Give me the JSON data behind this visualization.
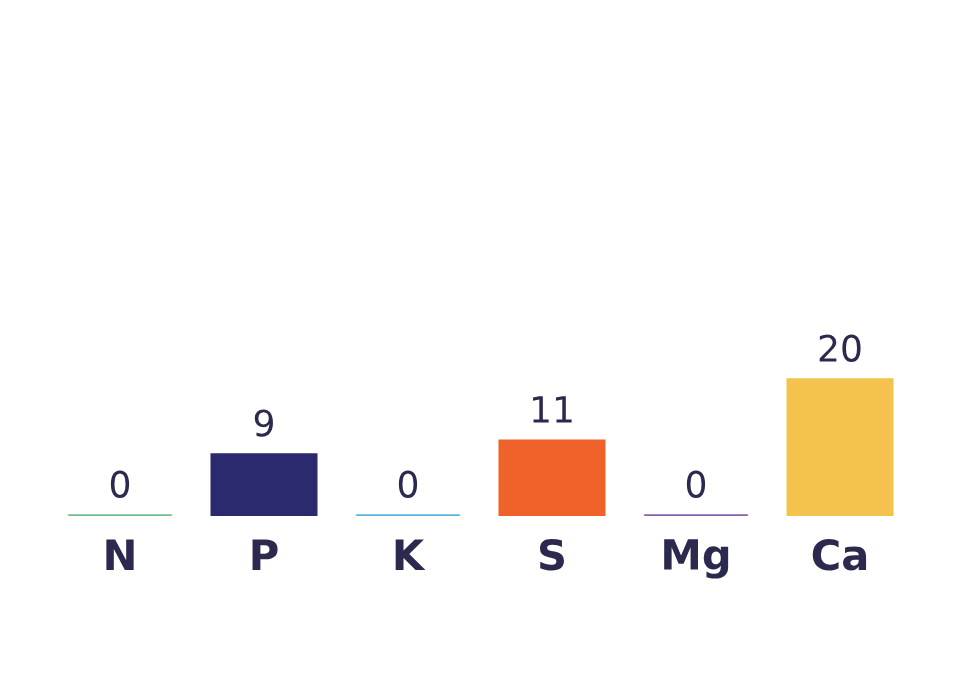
{
  "chart_data": {
    "type": "bar",
    "categories": [
      "N",
      "P",
      "K",
      "S",
      "Mg",
      "Ca"
    ],
    "values": [
      0,
      9,
      0,
      11,
      0,
      20
    ],
    "colors": [
      "#6cc28a",
      "#2b2a6e",
      "#5ab4e0",
      "#ef6229",
      "#8b5fb0",
      "#f4c24d"
    ],
    "data_labels": true
  }
}
